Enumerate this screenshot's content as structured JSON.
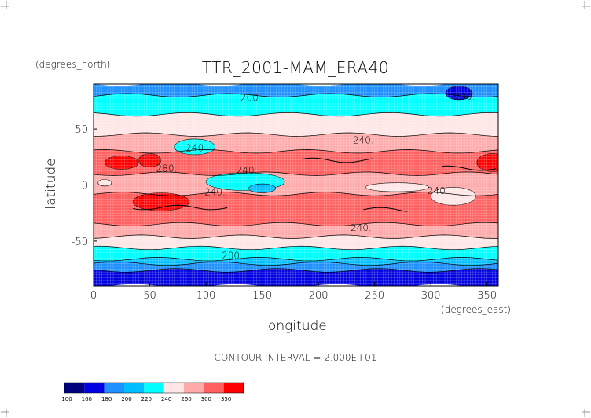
{
  "chart_data": {
    "type": "heatmap",
    "title": "TTR_2001-MAM_ERA40",
    "xlabel": "longitude",
    "ylabel": "latitude",
    "x_units": "(degrees_east)",
    "y_units": "(degrees_north)",
    "xlim": [
      0,
      360
    ],
    "ylim": [
      -90,
      90
    ],
    "x_ticks": [
      0,
      50,
      100,
      150,
      200,
      250,
      300,
      350
    ],
    "y_ticks": [
      -50,
      0,
      50
    ],
    "grid": true,
    "contour_interval_text": "CONTOUR INTERVAL = 2.000E+01",
    "contour_labels": [
      {
        "lon": 140,
        "lat": 75,
        "text": "200."
      },
      {
        "lon": 330,
        "lat": 76,
        "text": "200."
      },
      {
        "lon": 90,
        "lat": 30,
        "text": "240"
      },
      {
        "lon": 240,
        "lat": 37,
        "text": "240."
      },
      {
        "lon": 65,
        "lat": 12,
        "text": "280."
      },
      {
        "lon": 135,
        "lat": 10,
        "text": "240"
      },
      {
        "lon": 108,
        "lat": -9,
        "text": "240."
      },
      {
        "lon": 305,
        "lat": -8,
        "text": "240"
      },
      {
        "lon": 238,
        "lat": -41,
        "text": "240."
      },
      {
        "lon": 122,
        "lat": -66,
        "text": "200"
      }
    ],
    "legend_bins": [
      {
        "label": "100",
        "color": "#00007f"
      },
      {
        "label": "160",
        "color": "#0000e0"
      },
      {
        "label": "180",
        "color": "#1e90ff"
      },
      {
        "label": "200",
        "color": "#00bfff"
      },
      {
        "label": "220",
        "color": "#00ffff"
      },
      {
        "label": "240",
        "color": "#ffe6e6"
      },
      {
        "label": "260",
        "color": "#ffaaaa"
      },
      {
        "label": "300",
        "color": "#ff6060"
      },
      {
        "label": "350",
        "color": "#ff0000"
      }
    ],
    "bands": [
      {
        "from": 90,
        "to": 80,
        "color": "#1e90ff"
      },
      {
        "from": 80,
        "to": 63,
        "color": "#00ffff"
      },
      {
        "from": 63,
        "to": 45,
        "color": "#ffe6e6"
      },
      {
        "from": 45,
        "to": 30,
        "color": "#ffaaaa"
      },
      {
        "from": 30,
        "to": 10,
        "color": "#ff6060"
      },
      {
        "from": 10,
        "to": -8,
        "color": "#ffaaaa"
      },
      {
        "from": -8,
        "to": -35,
        "color": "#ff6060"
      },
      {
        "from": -35,
        "to": -46,
        "color": "#ffaaaa"
      },
      {
        "from": -46,
        "to": -56,
        "color": "#ffe6e6"
      },
      {
        "from": -56,
        "to": -66,
        "color": "#00ffff"
      },
      {
        "from": -66,
        "to": -70,
        "color": "#00bfff"
      },
      {
        "from": -70,
        "to": -76,
        "color": "#1e90ff"
      },
      {
        "from": -76,
        "to": -90,
        "color": "#0000e0"
      }
    ],
    "features": [
      {
        "lon": 325,
        "lat": 82,
        "rlon": 12,
        "rlat": 6,
        "color": "#0000e0"
      },
      {
        "lon": 90,
        "lat": 34,
        "rlon": 18,
        "rlat": 7,
        "color": "#00ffff"
      },
      {
        "lon": 135,
        "lat": 3,
        "rlon": 35,
        "rlat": 8,
        "color": "#00ffff"
      },
      {
        "lon": 150,
        "lat": -3,
        "rlon": 12,
        "rlat": 4,
        "color": "#00bfff"
      },
      {
        "lon": 10,
        "lat": 2,
        "rlon": 6,
        "rlat": 3,
        "color": "#ffe6e6"
      },
      {
        "lon": 355,
        "lat": 20,
        "rlon": 14,
        "rlat": 8,
        "color": "#ff0000"
      },
      {
        "lon": 25,
        "lat": 20,
        "rlon": 15,
        "rlat": 6,
        "color": "#ff0000"
      },
      {
        "lon": 50,
        "lat": 22,
        "rlon": 10,
        "rlat": 6,
        "color": "#ff0000"
      },
      {
        "lon": 270,
        "lat": -2,
        "rlon": 28,
        "rlat": 4,
        "color": "#ffe6e6"
      },
      {
        "lon": 320,
        "lat": -10,
        "rlon": 20,
        "rlat": 8,
        "color": "#ffe6e6"
      },
      {
        "lon": 60,
        "lat": -15,
        "rlon": 25,
        "rlat": 8,
        "color": "#ff0000"
      }
    ],
    "contours": [
      {
        "lat": -20,
        "lonStart": 35,
        "lonEnd": 120
      },
      {
        "lat": -22,
        "lonStart": 240,
        "lonEnd": 280
      },
      {
        "lat": 22,
        "lonStart": 185,
        "lonEnd": 250
      },
      {
        "lat": 15,
        "lonStart": 310,
        "lonEnd": 358
      }
    ]
  }
}
